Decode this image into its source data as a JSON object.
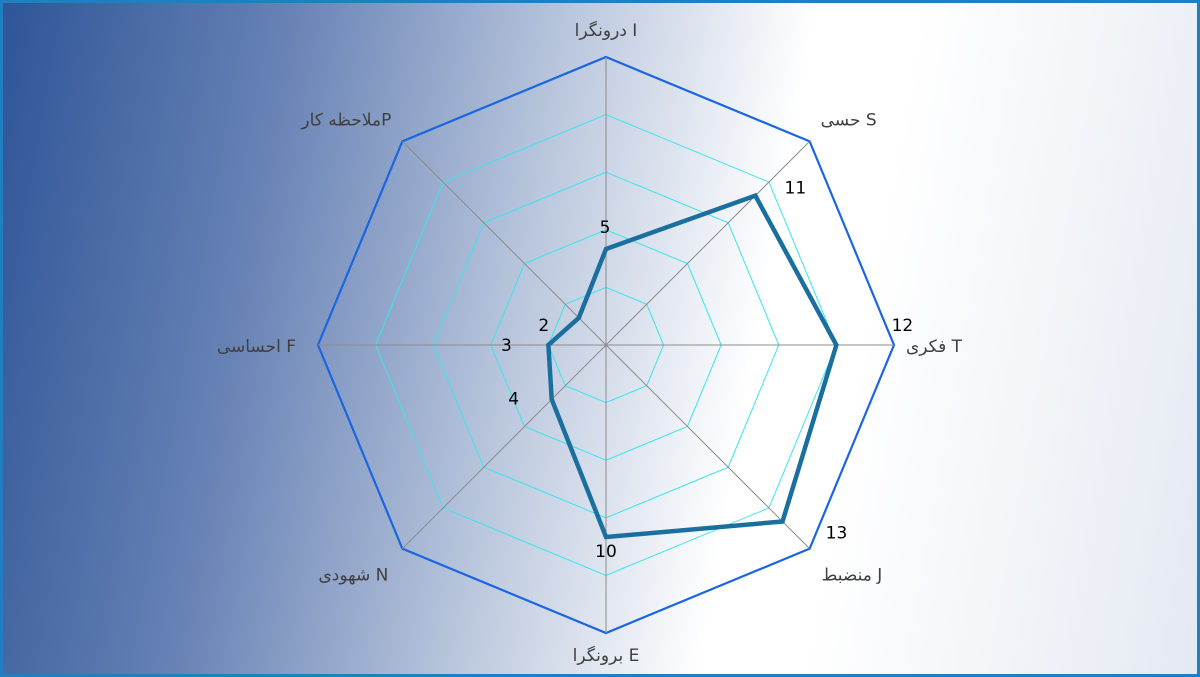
{
  "chart_data": {
    "type": "radar",
    "title": "",
    "categories": [
      "درونگرا I",
      "حسی S",
      "فکری T",
      "منضبط J",
      "برونگرا E",
      "شهودی N",
      "احساسی F",
      "ملاحظه کارP"
    ],
    "values": [
      5,
      11,
      12,
      13,
      10,
      4,
      3,
      2
    ],
    "data_labels": [
      "5",
      "11",
      "12",
      "13",
      "10",
      "4",
      "3",
      "2"
    ],
    "rmax": 15,
    "rings": 5,
    "legend": "none",
    "colors": {
      "series": "#1b6f9e",
      "outer_ring": "#1a66e0",
      "inner_rings": "#39e5ef",
      "spokes": "#8c8c8c"
    }
  }
}
